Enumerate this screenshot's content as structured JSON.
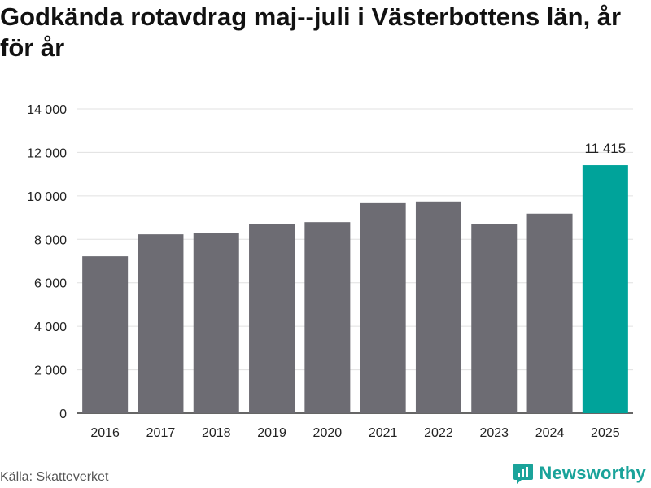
{
  "chart_data": {
    "type": "bar",
    "title": "Godkända rotavdrag maj--juli i Västerbottens län, år för år",
    "categories": [
      "2016",
      "2017",
      "2018",
      "2019",
      "2020",
      "2021",
      "2022",
      "2023",
      "2024",
      "2025"
    ],
    "values": [
      7220,
      8230,
      8300,
      8720,
      8790,
      9700,
      9740,
      8720,
      9180,
      11415
    ],
    "highlight_index": 9,
    "highlight_label": "11 415",
    "ylim": [
      0,
      14000
    ],
    "yticks": [
      0,
      2000,
      4000,
      6000,
      8000,
      10000,
      12000,
      14000
    ],
    "ytick_labels": [
      "0",
      "2 000",
      "4 000",
      "6 000",
      "8 000",
      "10 000",
      "12 000",
      "14 000"
    ],
    "grid": true,
    "colors": {
      "bar": "#6d6c73",
      "highlight": "#00a39a",
      "grid": "#e0e0e0"
    }
  },
  "footer": {
    "source": "Källa: Skatteverket",
    "brand": "Newsworthy",
    "brand_icon": "newsworthy-logo-icon"
  }
}
